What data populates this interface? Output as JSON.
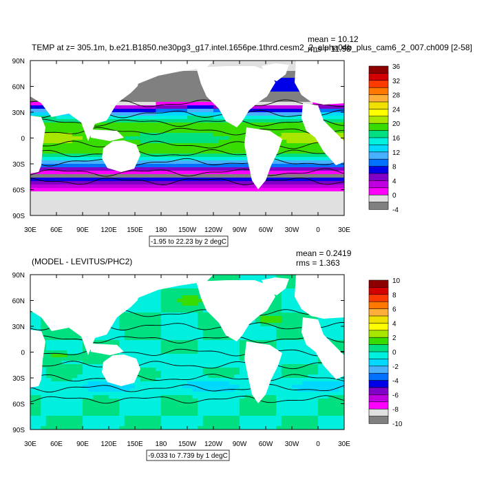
{
  "chart_data": [
    {
      "type": "heatmap",
      "title": "TEMP at z= 305.1m, b.e21.B1850.ne30pg3_g17.intel.1656pe.1thrd.cesm2_2_alpha04b_plus_cam6_2_007.ch009 [2-58]",
      "stats": {
        "mean": "mean = 10.12",
        "rms": "rms = 11.98"
      },
      "x_ticks": [
        "30E",
        "60E",
        "90E",
        "120E",
        "150E",
        "180",
        "150W",
        "120W",
        "90W",
        "60W",
        "30W",
        "0",
        "30E"
      ],
      "y_ticks": [
        "90N",
        "60N",
        "30N",
        "0",
        "30S",
        "60S",
        "90S"
      ],
      "footer": "-1.95 to 22.23 by 2 degC",
      "colorbar": {
        "labels": [
          "36",
          "32",
          "28",
          "24",
          "20",
          "16",
          "12",
          "8",
          "4",
          "0",
          "-4"
        ],
        "colors": [
          "#8c0000",
          "#d40000",
          "#ff3a00",
          "#ff7800",
          "#ffae3a",
          "#f0e000",
          "#ffff00",
          "#a8e600",
          "#38dc00",
          "#00e080",
          "#00f0e0",
          "#00d8ff",
          "#48b0ff",
          "#0070ff",
          "#0000e8",
          "#8000c8",
          "#c000e0",
          "#ff00ff",
          "#e0e0e0",
          "#808080"
        ]
      },
      "field": "temperature",
      "colormap": [
        "#808080",
        "#e0e0e0",
        "#ff00ff",
        "#c000e0",
        "#8000c8",
        "#0000e8",
        "#0070ff",
        "#48b0ff",
        "#00d8ff",
        "#00f0e0",
        "#00e080",
        "#38dc00",
        "#a8e600",
        "#ffff00",
        "#f0e000",
        "#ffae3a",
        "#ff7800",
        "#ff3a00",
        "#d40000",
        "#8c0000"
      ],
      "levels_min": -4,
      "level_step": 2
    },
    {
      "type": "heatmap",
      "title": "(MODEL - LEVITUS/PHC2)",
      "stats": {
        "mean": "mean = 0.2419",
        "rms": "rms = 1.363"
      },
      "x_ticks": [
        "30E",
        "60E",
        "90E",
        "120E",
        "150E",
        "180",
        "150W",
        "120W",
        "90W",
        "60W",
        "30W",
        "0",
        "30E"
      ],
      "y_ticks": [
        "90N",
        "60N",
        "30N",
        "0",
        "30S",
        "60S",
        "90S"
      ],
      "footer": "-9.033 to 7.739 by 1 degC",
      "colorbar": {
        "labels": [
          "10",
          "8",
          "6",
          "4",
          "2",
          "0",
          "-2",
          "-4",
          "-6",
          "-8",
          "-10"
        ],
        "colors": [
          "#8c0000",
          "#d40000",
          "#ff3a00",
          "#ff7800",
          "#ffae3a",
          "#f0e000",
          "#ffff00",
          "#a8e600",
          "#38dc00",
          "#00e080",
          "#00f0e0",
          "#00d8ff",
          "#48b0ff",
          "#0070ff",
          "#0000e8",
          "#8000c8",
          "#c000e0",
          "#ff00ff",
          "#e0e0e0",
          "#808080"
        ]
      },
      "field": "difference",
      "colormap": [
        "#808080",
        "#e0e0e0",
        "#ff00ff",
        "#c000e0",
        "#8000c8",
        "#0000e8",
        "#0070ff",
        "#48b0ff",
        "#00d8ff",
        "#00f0e0",
        "#00e080",
        "#38dc00",
        "#a8e600",
        "#ffff00",
        "#f0e000",
        "#ffae3a",
        "#ff7800",
        "#ff3a00",
        "#d40000",
        "#8c0000"
      ],
      "levels_min": -10,
      "level_step": 1
    }
  ]
}
